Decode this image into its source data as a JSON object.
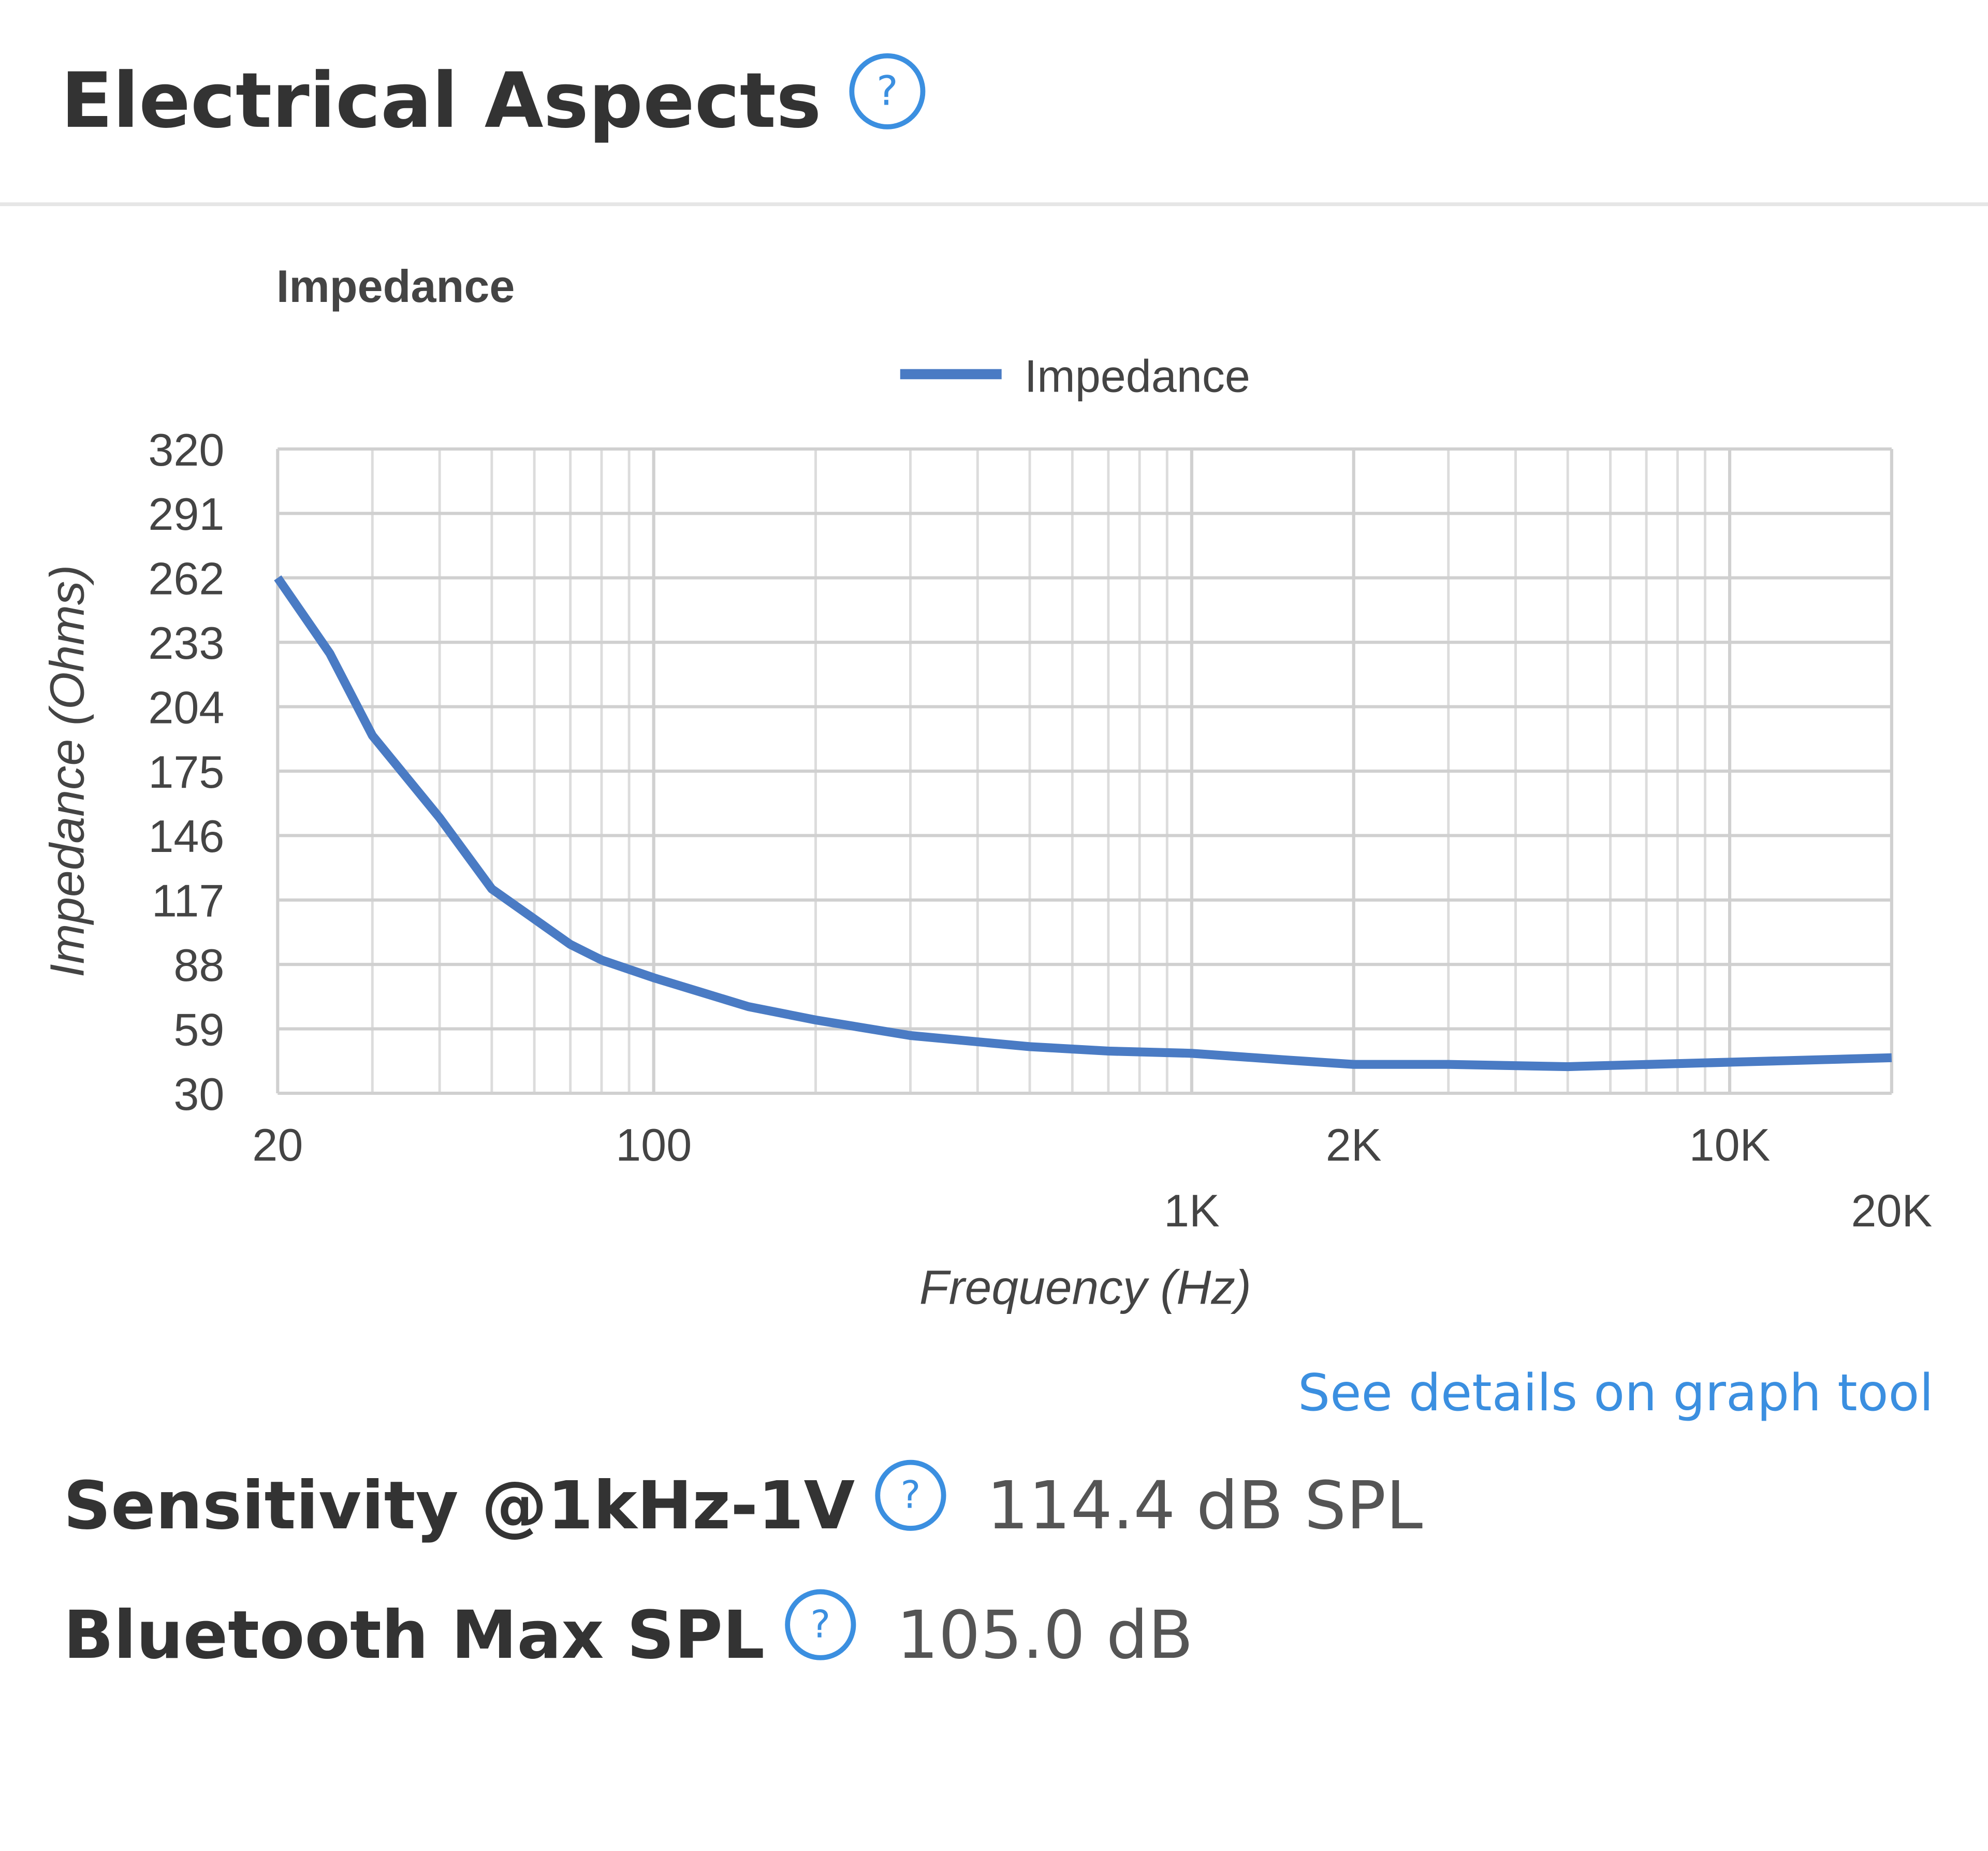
{
  "header": {
    "title": "Electrical Aspects"
  },
  "chart_data": {
    "type": "line",
    "title": "Impedance",
    "x_label": "Frequency (Hz)",
    "y_label": "Impedance (Ohms)",
    "x": [
      20,
      25,
      30,
      40,
      50,
      70,
      80,
      100,
      150,
      200,
      300,
      500,
      700,
      1000,
      1500,
      2000,
      3000,
      5000,
      10000,
      20000
    ],
    "series": [
      {
        "name": "Impedance",
        "color": "#4a7bc4",
        "values": [
          262,
          228,
          191,
          154,
          122,
          97,
          90,
          82,
          69,
          63,
          56,
          51,
          49,
          48,
          45,
          43,
          43,
          42,
          44,
          46
        ]
      }
    ],
    "xlog": true,
    "xlim": [
      20,
      20000
    ],
    "xticks": [
      20,
      100,
      {
        "value": 1000,
        "label": "1K"
      },
      {
        "value": 2000,
        "label": "2K"
      },
      {
        "value": 10000,
        "label": "10K"
      },
      {
        "value": 20000,
        "label": "20K"
      }
    ],
    "xminorticks": [
      30,
      40,
      50,
      60,
      70,
      80,
      90,
      200,
      300,
      400,
      500,
      600,
      700,
      800,
      900,
      3000,
      4000,
      5000,
      6000,
      7000,
      8000,
      9000
    ],
    "ylim": [
      30,
      320
    ],
    "yticks": [
      30,
      59,
      88,
      117,
      146,
      175,
      204,
      233,
      262,
      291,
      320
    ],
    "grid": true,
    "legend": "top"
  },
  "link": "See details on graph tool",
  "specs": [
    {
      "label": "Sensitivity @1kHz-1V",
      "value": "114.4 dB SPL"
    },
    {
      "label": "Bluetooth Max SPL",
      "value": "105.0 dB"
    }
  ]
}
